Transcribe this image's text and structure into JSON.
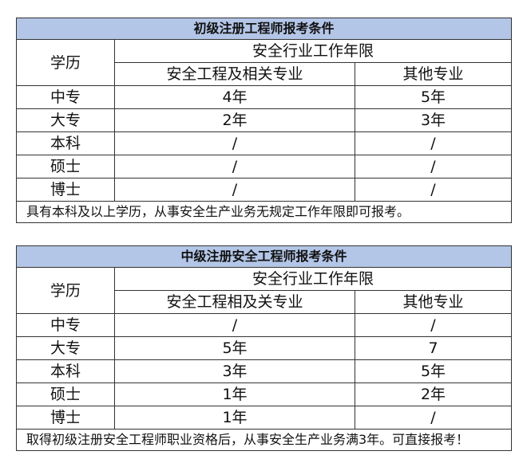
{
  "tables": [
    {
      "title": "初级注册工程师报考条件",
      "edu_header": "学历",
      "years_header": "安全行业工作年限",
      "col1": "安全工程及相关专业",
      "col2": "其他专业",
      "rows": [
        [
          "中专",
          "4年",
          "5年"
        ],
        [
          "大专",
          "2年",
          "3年"
        ],
        [
          "本科",
          "/",
          "/"
        ],
        [
          "硕士",
          "/",
          "/"
        ],
        [
          "博士",
          "/",
          "/"
        ]
      ],
      "note": "具有本科及以上学历，从事安全生产业务无规定工作年限即可报考。"
    },
    {
      "title": "中级注册安全工程师报考条件",
      "edu_header": "学历",
      "years_header": "安全行业工作年限",
      "col1": "安全工程相及关专业",
      "col2": "其他专业",
      "rows": [
        [
          "中专",
          "/",
          "/"
        ],
        [
          "大专",
          "5年",
          "7"
        ],
        [
          "本科",
          "3年",
          "5年"
        ],
        [
          "硕士",
          "1年",
          "2年"
        ],
        [
          "博士",
          "1年",
          "/"
        ]
      ],
      "note": "取得初级注册安全工程师职业资格后，从事安全生产业务满3年。可直接报考！"
    }
  ],
  "colors": {
    "title_bg": "#b4c6e7"
  }
}
